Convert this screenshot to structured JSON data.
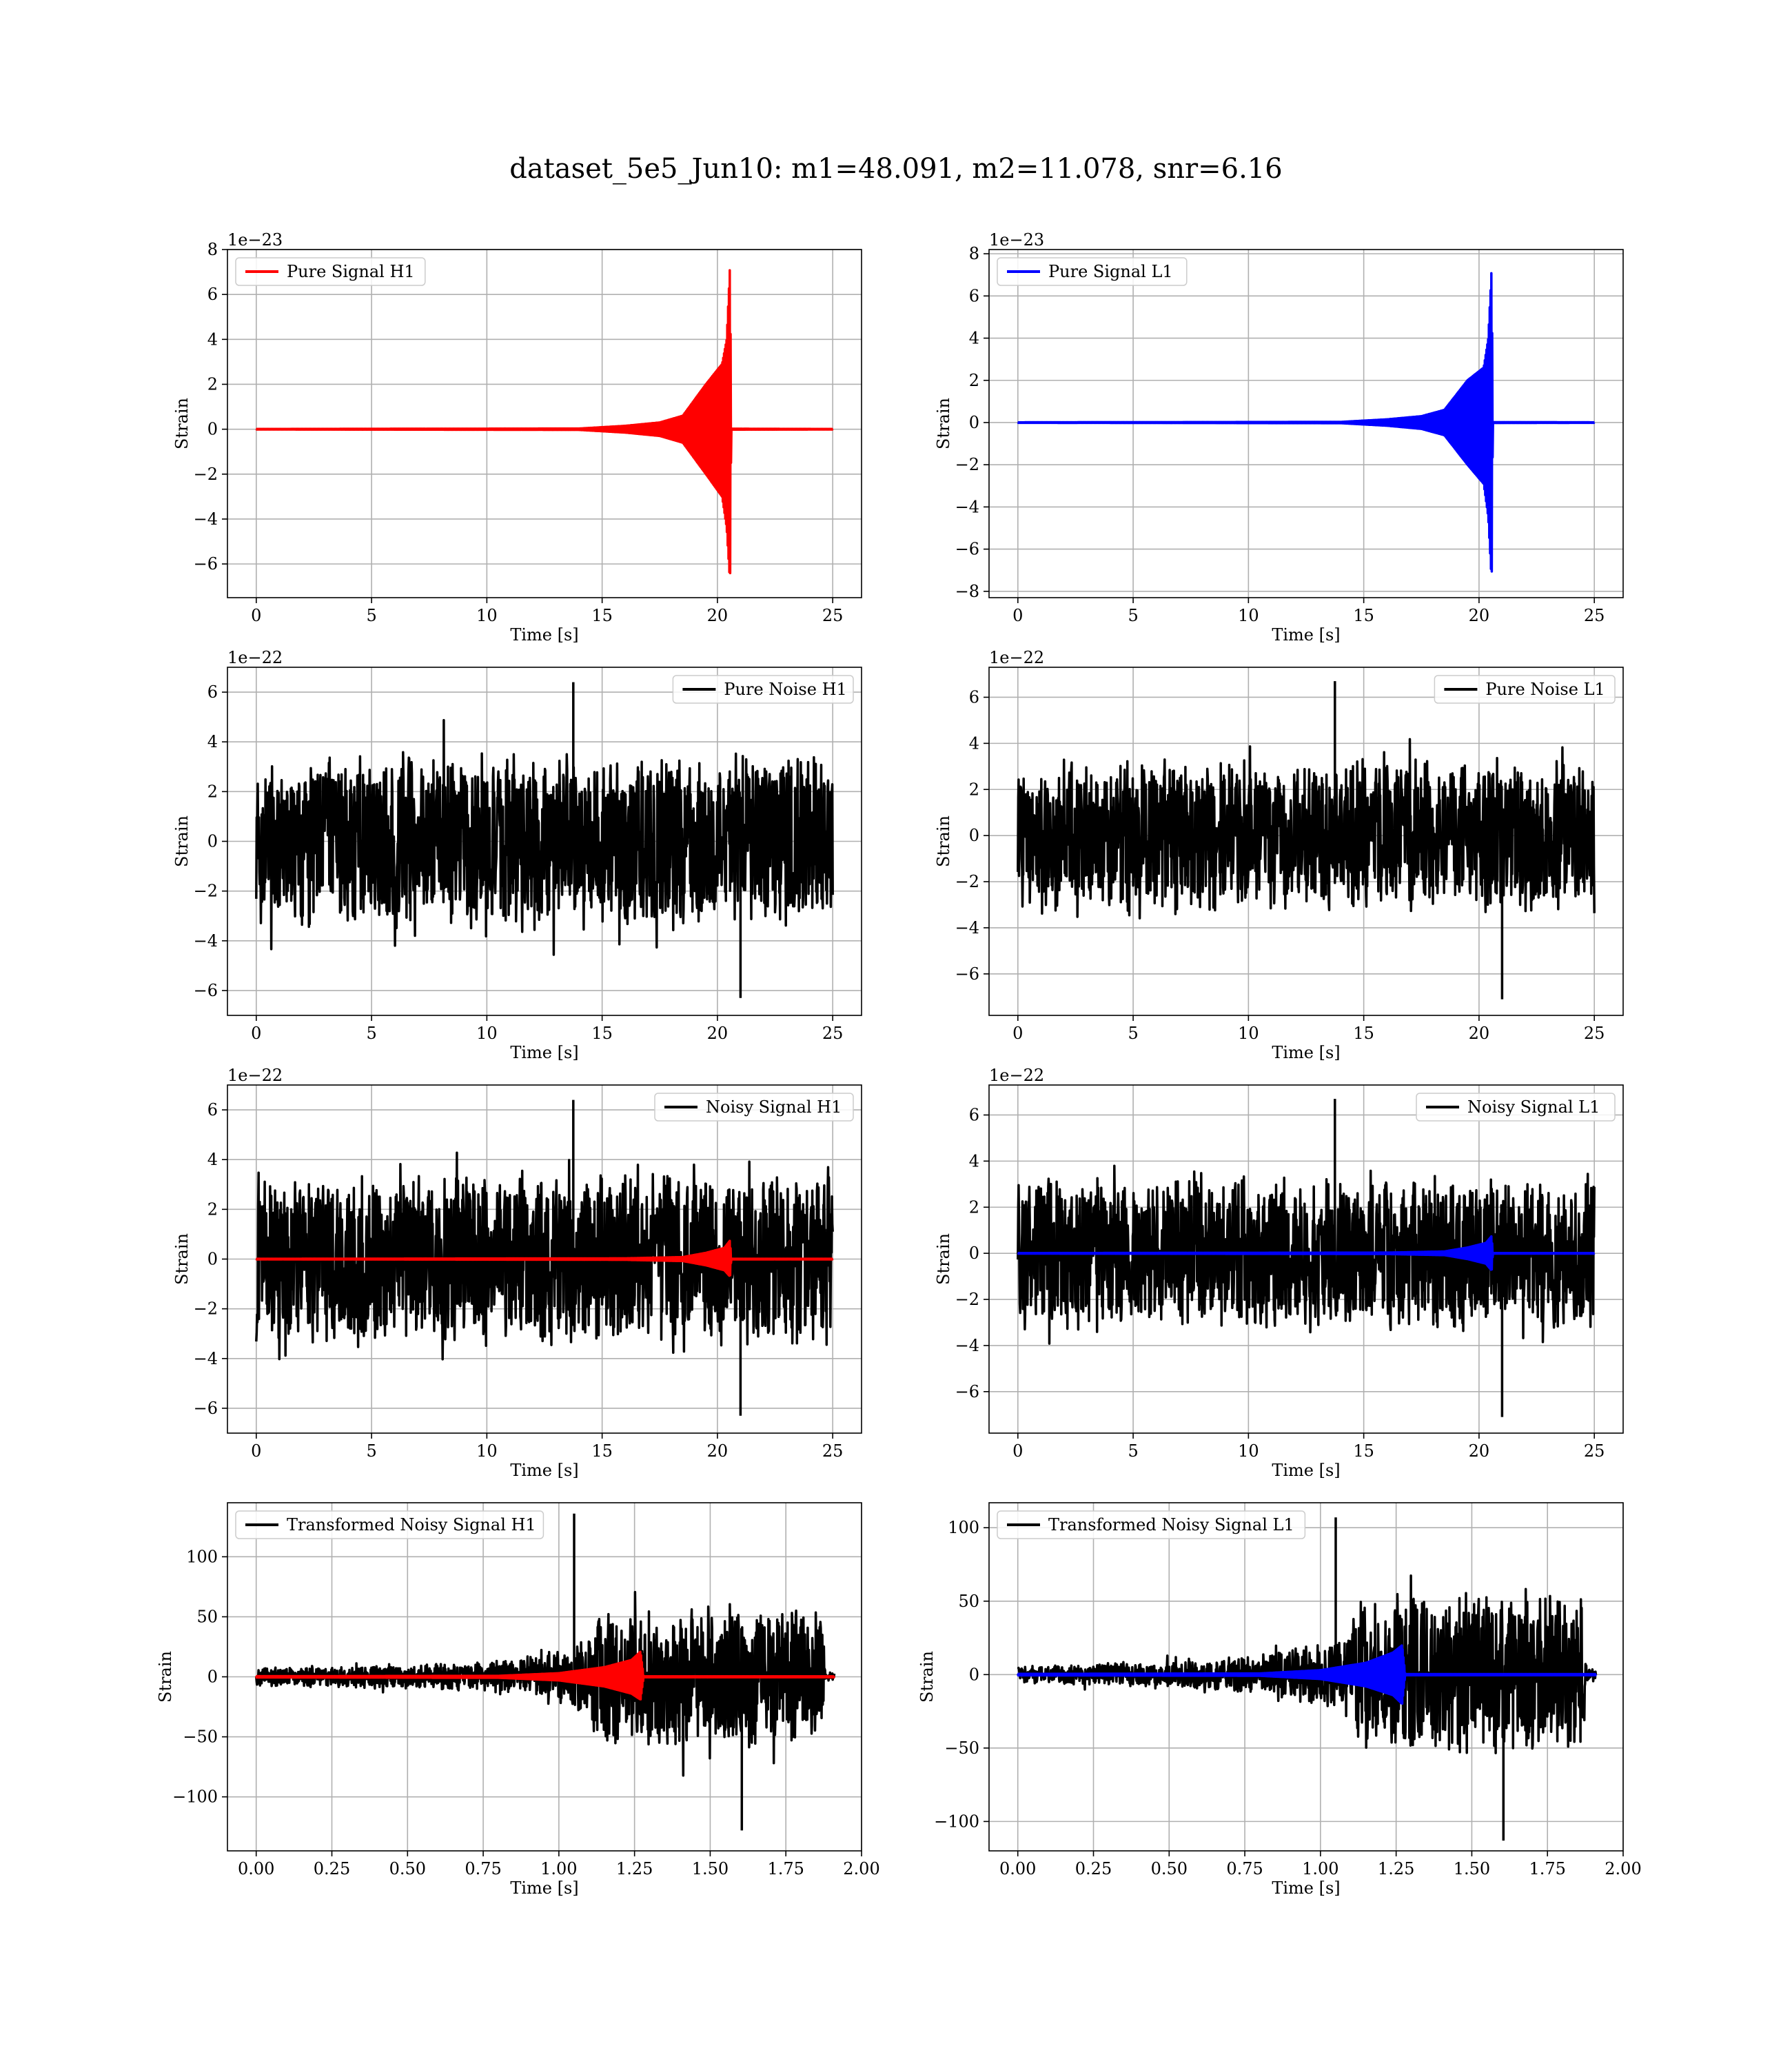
{
  "figure": {
    "title": "dataset_5e5_Jun10: m1=48.091, m2=11.078, snr=6.16"
  },
  "colors": {
    "h1_signal": "#ff0000",
    "l1_signal": "#0000ff",
    "noise": "#000000",
    "grid": "#b0b0b0"
  },
  "chart_data": [
    {
      "id": "pure-signal-h1",
      "type": "line",
      "detector": "H1",
      "xlabel": "Time [s]",
      "ylabel": "Strain",
      "offset_text": "1e−23",
      "legend": {
        "position": "upper left",
        "entries": [
          {
            "label": "Pure Signal H1",
            "color": "#ff0000"
          }
        ]
      },
      "xlim": [
        -1.25,
        26.25
      ],
      "ylim": [
        -7.5,
        8.0
      ],
      "grid": true,
      "xticks": [
        0,
        5,
        10,
        15,
        20,
        25
      ],
      "xtick_labels": [
        "0",
        "5",
        "10",
        "15",
        "20",
        "25"
      ],
      "yticks": [
        -6,
        -4,
        -2,
        0,
        2,
        4,
        6,
        8
      ],
      "ytick_labels": [
        "−6",
        "−4",
        "−2",
        "0",
        "2",
        "4",
        "6",
        "8"
      ],
      "series": [
        {
          "name": "Pure Signal H1",
          "color": "#ff0000",
          "kind": "envelope",
          "x_range": [
            0,
            25
          ],
          "upper": [
            [
              0,
              0.01
            ],
            [
              14,
              0.03
            ],
            [
              16,
              0.15
            ],
            [
              17.5,
              0.3
            ],
            [
              18.5,
              0.6
            ],
            [
              19.5,
              2.0
            ],
            [
              20.2,
              2.9
            ],
            [
              20.4,
              4.0
            ],
            [
              20.55,
              7.4
            ],
            [
              20.6,
              0.02
            ],
            [
              25,
              0.01
            ]
          ],
          "lower": [
            [
              0,
              -0.01
            ],
            [
              14,
              -0.03
            ],
            [
              16,
              -0.15
            ],
            [
              17.5,
              -0.3
            ],
            [
              18.5,
              -0.6
            ],
            [
              19.5,
              -2.0
            ],
            [
              20.2,
              -3.0
            ],
            [
              20.4,
              -4.4
            ],
            [
              20.55,
              -6.9
            ],
            [
              20.6,
              -0.02
            ],
            [
              25,
              -0.01
            ]
          ]
        }
      ]
    },
    {
      "id": "pure-signal-l1",
      "type": "line",
      "detector": "L1",
      "xlabel": "Time [s]",
      "ylabel": "Strain",
      "offset_text": "1e−23",
      "legend": {
        "position": "upper left",
        "entries": [
          {
            "label": "Pure Signal L1",
            "color": "#0000ff"
          }
        ]
      },
      "xlim": [
        -1.25,
        26.25
      ],
      "ylim": [
        -8.3,
        8.2
      ],
      "grid": true,
      "xticks": [
        0,
        5,
        10,
        15,
        20,
        25
      ],
      "xtick_labels": [
        "0",
        "5",
        "10",
        "15",
        "20",
        "25"
      ],
      "yticks": [
        -8,
        -6,
        -4,
        -2,
        0,
        2,
        4,
        6,
        8
      ],
      "ytick_labels": [
        "−8",
        "−6",
        "−4",
        "−2",
        "0",
        "2",
        "4",
        "6",
        "8"
      ],
      "series": [
        {
          "name": "Pure Signal L1",
          "color": "#0000ff",
          "kind": "envelope",
          "x_range": [
            0,
            25
          ],
          "upper": [
            [
              0,
              0.01
            ],
            [
              14,
              0.03
            ],
            [
              16,
              0.15
            ],
            [
              17.5,
              0.3
            ],
            [
              18.5,
              0.6
            ],
            [
              19.5,
              2.0
            ],
            [
              20.2,
              2.6
            ],
            [
              20.4,
              4.0
            ],
            [
              20.55,
              7.4
            ],
            [
              20.6,
              0.02
            ],
            [
              25,
              0.01
            ]
          ],
          "lower": [
            [
              0,
              -0.01
            ],
            [
              14,
              -0.03
            ],
            [
              16,
              -0.15
            ],
            [
              17.5,
              -0.3
            ],
            [
              18.5,
              -0.6
            ],
            [
              19.5,
              -2.0
            ],
            [
              20.2,
              -2.9
            ],
            [
              20.4,
              -4.5
            ],
            [
              20.55,
              -7.6
            ],
            [
              20.6,
              -0.02
            ],
            [
              25,
              -0.01
            ]
          ]
        }
      ]
    },
    {
      "id": "pure-noise-h1",
      "type": "line",
      "detector": "H1",
      "xlabel": "Time [s]",
      "ylabel": "Strain",
      "offset_text": "1e−22",
      "legend": {
        "position": "upper right",
        "entries": [
          {
            "label": "Pure Noise H1",
            "color": "#000000"
          }
        ]
      },
      "xlim": [
        -1.25,
        26.25
      ],
      "ylim": [
        -7.0,
        7.0
      ],
      "grid": true,
      "xticks": [
        0,
        5,
        10,
        15,
        20,
        25
      ],
      "xtick_labels": [
        "0",
        "5",
        "10",
        "15",
        "20",
        "25"
      ],
      "yticks": [
        -6,
        -4,
        -2,
        0,
        2,
        4,
        6
      ],
      "ytick_labels": [
        "−6",
        "−4",
        "−2",
        "0",
        "2",
        "4",
        "6"
      ],
      "series": [
        {
          "name": "Pure Noise H1",
          "color": "#000000",
          "kind": "noise",
          "x_range": [
            0,
            25
          ],
          "dense_band": [
            -3.5,
            3.5
          ],
          "max": 6.4,
          "min": -6.3
        }
      ]
    },
    {
      "id": "pure-noise-l1",
      "type": "line",
      "detector": "L1",
      "xlabel": "Time [s]",
      "ylabel": "Strain",
      "offset_text": "1e−22",
      "legend": {
        "position": "upper right",
        "entries": [
          {
            "label": "Pure Noise L1",
            "color": "#000000"
          }
        ]
      },
      "xlim": [
        -1.25,
        26.25
      ],
      "ylim": [
        -7.8,
        7.3
      ],
      "grid": true,
      "xticks": [
        0,
        5,
        10,
        15,
        20,
        25
      ],
      "xtick_labels": [
        "0",
        "5",
        "10",
        "15",
        "20",
        "25"
      ],
      "yticks": [
        -6,
        -4,
        -2,
        0,
        2,
        4,
        6
      ],
      "ytick_labels": [
        "−6",
        "−4",
        "−2",
        "0",
        "2",
        "4",
        "6"
      ],
      "series": [
        {
          "name": "Pure Noise L1",
          "color": "#000000",
          "kind": "noise",
          "x_range": [
            0,
            25
          ],
          "dense_band": [
            -3.3,
            3.3
          ],
          "max": 6.7,
          "min": -7.1
        }
      ]
    },
    {
      "id": "noisy-signal-h1",
      "type": "line",
      "detector": "H1",
      "xlabel": "Time [s]",
      "ylabel": "Strain",
      "offset_text": "1e−22",
      "legend": {
        "position": "upper right",
        "entries": [
          {
            "label": "Noisy Signal H1",
            "color": "#000000"
          }
        ]
      },
      "xlim": [
        -1.25,
        26.25
      ],
      "ylim": [
        -7.0,
        7.0
      ],
      "grid": true,
      "xticks": [
        0,
        5,
        10,
        15,
        20,
        25
      ],
      "xtick_labels": [
        "0",
        "5",
        "10",
        "15",
        "20",
        "25"
      ],
      "yticks": [
        -6,
        -4,
        -2,
        0,
        2,
        4,
        6
      ],
      "ytick_labels": [
        "−6",
        "−4",
        "−2",
        "0",
        "2",
        "4",
        "6"
      ],
      "series": [
        {
          "name": "Noisy Signal H1",
          "color": "#000000",
          "kind": "noise",
          "x_range": [
            0,
            25
          ],
          "dense_band": [
            -3.5,
            3.5
          ],
          "max": 6.4,
          "min": -6.3
        },
        {
          "name": "Pure Signal H1",
          "color": "#ff0000",
          "kind": "envelope",
          "x_range": [
            0,
            25
          ],
          "upper": [
            [
              0,
              0.01
            ],
            [
              16,
              0.03
            ],
            [
              18.5,
              0.08
            ],
            [
              19.5,
              0.25
            ],
            [
              20.3,
              0.45
            ],
            [
              20.55,
              0.75
            ],
            [
              20.6,
              0.01
            ],
            [
              25,
              0.01
            ]
          ],
          "lower": [
            [
              0,
              -0.01
            ],
            [
              16,
              -0.03
            ],
            [
              18.5,
              -0.08
            ],
            [
              19.5,
              -0.25
            ],
            [
              20.3,
              -0.45
            ],
            [
              20.55,
              -0.7
            ],
            [
              20.6,
              -0.01
            ],
            [
              25,
              -0.01
            ]
          ]
        }
      ]
    },
    {
      "id": "noisy-signal-l1",
      "type": "line",
      "detector": "L1",
      "xlabel": "Time [s]",
      "ylabel": "Strain",
      "offset_text": "1e−22",
      "legend": {
        "position": "upper right",
        "entries": [
          {
            "label": "Noisy Signal L1",
            "color": "#000000"
          }
        ]
      },
      "xlim": [
        -1.25,
        26.25
      ],
      "ylim": [
        -7.8,
        7.3
      ],
      "grid": true,
      "xticks": [
        0,
        5,
        10,
        15,
        20,
        25
      ],
      "xtick_labels": [
        "0",
        "5",
        "10",
        "15",
        "20",
        "25"
      ],
      "yticks": [
        -6,
        -4,
        -2,
        0,
        2,
        4,
        6
      ],
      "ytick_labels": [
        "−6",
        "−4",
        "−2",
        "0",
        "2",
        "4",
        "6"
      ],
      "series": [
        {
          "name": "Noisy Signal L1",
          "color": "#000000",
          "kind": "noise",
          "x_range": [
            0,
            25
          ],
          "dense_band": [
            -3.3,
            3.3
          ],
          "max": 6.7,
          "min": -7.1
        },
        {
          "name": "Pure Signal L1",
          "color": "#0000ff",
          "kind": "envelope",
          "x_range": [
            0,
            25
          ],
          "upper": [
            [
              0,
              0.01
            ],
            [
              16,
              0.03
            ],
            [
              18.5,
              0.08
            ],
            [
              19.5,
              0.25
            ],
            [
              20.3,
              0.45
            ],
            [
              20.55,
              0.75
            ],
            [
              20.6,
              0.01
            ],
            [
              25,
              0.01
            ]
          ],
          "lower": [
            [
              0,
              -0.01
            ],
            [
              16,
              -0.03
            ],
            [
              18.5,
              -0.08
            ],
            [
              19.5,
              -0.25
            ],
            [
              20.3,
              -0.45
            ],
            [
              20.55,
              -0.75
            ],
            [
              20.6,
              -0.01
            ],
            [
              25,
              -0.01
            ]
          ]
        }
      ]
    },
    {
      "id": "transformed-noisy-signal-h1",
      "type": "line",
      "detector": "H1",
      "xlabel": "Time [s]",
      "ylabel": "Strain",
      "offset_text": "",
      "legend": {
        "position": "upper left",
        "entries": [
          {
            "label": "Transformed Noisy Signal H1",
            "color": "#000000"
          }
        ]
      },
      "xlim": [
        -0.095,
        2.0
      ],
      "ylim": [
        -145,
        145
      ],
      "grid": true,
      "xticks": [
        0.0,
        0.25,
        0.5,
        0.75,
        1.0,
        1.25,
        1.5,
        1.75,
        2.0
      ],
      "xtick_labels": [
        "0.00",
        "0.25",
        "0.50",
        "0.75",
        "1.00",
        "1.25",
        "1.50",
        "1.75",
        "2.00"
      ],
      "yticks": [
        -100,
        -50,
        0,
        50,
        100
      ],
      "ytick_labels": [
        "−100",
        "−50",
        "0",
        "50",
        "100"
      ],
      "series": [
        {
          "name": "Transformed Noisy Signal H1",
          "color": "#000000",
          "kind": "noise",
          "x_range": [
            0,
            1.91
          ],
          "amplitude_profile": [
            [
              0,
              8
            ],
            [
              0.35,
              10
            ],
            [
              0.8,
              14
            ],
            [
              1.05,
              25
            ],
            [
              1.12,
              55
            ],
            [
              1.4,
              65
            ],
            [
              1.87,
              60
            ],
            [
              1.88,
              4
            ],
            [
              1.91,
              4
            ]
          ],
          "max": 136,
          "min": -128
        },
        {
          "name": "Pure Signal H1",
          "color": "#ff0000",
          "kind": "envelope",
          "x_range": [
            0,
            1.91
          ],
          "upper": [
            [
              0,
              0.5
            ],
            [
              0.8,
              0.8
            ],
            [
              1.0,
              3
            ],
            [
              1.15,
              8
            ],
            [
              1.24,
              14
            ],
            [
              1.27,
              21
            ],
            [
              1.28,
              0.4
            ],
            [
              1.91,
              0.4
            ]
          ],
          "lower": [
            [
              0,
              -0.5
            ],
            [
              0.8,
              -0.8
            ],
            [
              1.0,
              -3
            ],
            [
              1.15,
              -8
            ],
            [
              1.24,
              -14
            ],
            [
              1.27,
              -19
            ],
            [
              1.28,
              -0.4
            ],
            [
              1.91,
              -0.4
            ]
          ]
        }
      ]
    },
    {
      "id": "transformed-noisy-signal-l1",
      "type": "line",
      "detector": "L1",
      "xlabel": "Time [s]",
      "ylabel": "Strain",
      "offset_text": "",
      "legend": {
        "position": "upper left",
        "entries": [
          {
            "label": "Transformed Noisy Signal L1",
            "color": "#000000"
          }
        ]
      },
      "xlim": [
        -0.095,
        2.0
      ],
      "ylim": [
        -120,
        117
      ],
      "grid": true,
      "xticks": [
        0.0,
        0.25,
        0.5,
        0.75,
        1.0,
        1.25,
        1.5,
        1.75,
        2.0
      ],
      "xtick_labels": [
        "0.00",
        "0.25",
        "0.50",
        "0.75",
        "1.00",
        "1.25",
        "1.50",
        "1.75",
        "2.00"
      ],
      "yticks": [
        -100,
        -50,
        0,
        50,
        100
      ],
      "ytick_labels": [
        "−100",
        "−50",
        "0",
        "50",
        "100"
      ],
      "series": [
        {
          "name": "Transformed Noisy Signal L1",
          "color": "#000000",
          "kind": "noise",
          "x_range": [
            0,
            1.91
          ],
          "amplitude_profile": [
            [
              0,
              6
            ],
            [
              0.4,
              9
            ],
            [
              0.8,
              14
            ],
            [
              1.05,
              25
            ],
            [
              1.12,
              52
            ],
            [
              1.4,
              62
            ],
            [
              1.87,
              58
            ],
            [
              1.88,
              4
            ],
            [
              1.91,
              4
            ]
          ],
          "max": 107,
          "min": -113
        },
        {
          "name": "Pure Signal L1",
          "color": "#0000ff",
          "kind": "envelope",
          "x_range": [
            0,
            1.91
          ],
          "upper": [
            [
              0,
              0.5
            ],
            [
              0.8,
              0.8
            ],
            [
              1.0,
              3
            ],
            [
              1.15,
              8
            ],
            [
              1.24,
              15
            ],
            [
              1.27,
              20
            ],
            [
              1.28,
              0.4
            ],
            [
              1.91,
              0.4
            ]
          ],
          "lower": [
            [
              0,
              -0.5
            ],
            [
              0.8,
              -0.8
            ],
            [
              1.0,
              -3
            ],
            [
              1.15,
              -8
            ],
            [
              1.24,
              -14
            ],
            [
              1.27,
              -20
            ],
            [
              1.28,
              -0.4
            ],
            [
              1.91,
              -0.4
            ]
          ]
        }
      ]
    }
  ]
}
